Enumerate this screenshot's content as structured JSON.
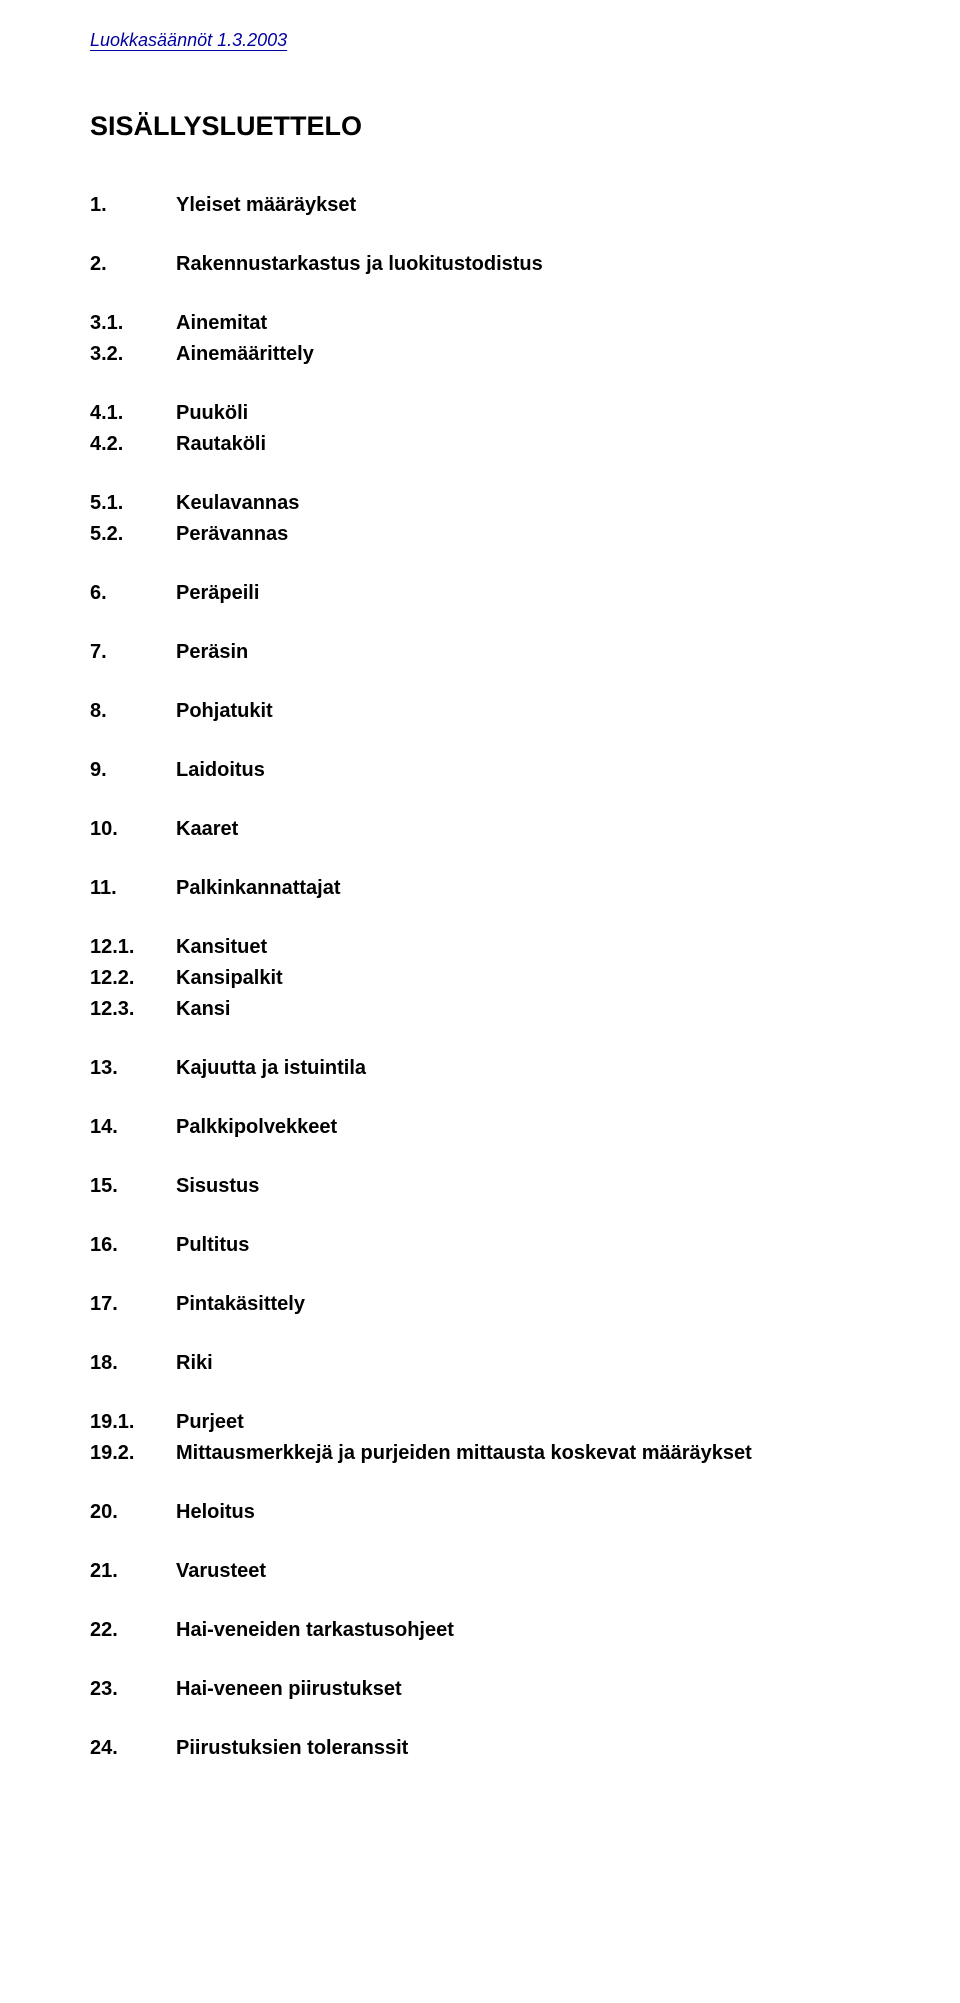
{
  "header": "Luokkasäännöt 1.3.2003",
  "title": "SISÄLLYSLUETTELO",
  "toc": [
    {
      "items": [
        {
          "num": "1.",
          "label": "Yleiset määräykset"
        }
      ]
    },
    {
      "items": [
        {
          "num": "2.",
          "label": "Rakennustarkastus ja luokitustodistus"
        }
      ]
    },
    {
      "items": [
        {
          "num": "3.1.",
          "label": "Ainemitat"
        },
        {
          "num": "3.2.",
          "label": "Ainemäärittely"
        }
      ]
    },
    {
      "items": [
        {
          "num": "4.1.",
          "label": "Puuköli"
        },
        {
          "num": "4.2.",
          "label": "Rautaköli"
        }
      ]
    },
    {
      "items": [
        {
          "num": "5.1.",
          "label": "Keulavannas"
        },
        {
          "num": "5.2.",
          "label": "Perävannas"
        }
      ]
    },
    {
      "items": [
        {
          "num": "6.",
          "label": "Peräpeili"
        }
      ]
    },
    {
      "items": [
        {
          "num": "7.",
          "label": "Peräsin"
        }
      ]
    },
    {
      "items": [
        {
          "num": "8.",
          "label": "Pohjatukit"
        }
      ]
    },
    {
      "items": [
        {
          "num": "9.",
          "label": "Laidoitus"
        }
      ]
    },
    {
      "items": [
        {
          "num": "10.",
          "label": "Kaaret"
        }
      ]
    },
    {
      "items": [
        {
          "num": "11.",
          "label": "Palkinkannattajat"
        }
      ]
    },
    {
      "items": [
        {
          "num": "12.1.",
          "label": "Kansituet"
        },
        {
          "num": "12.2.",
          "label": "Kansipalkit"
        },
        {
          "num": "12.3.",
          "label": "Kansi"
        }
      ]
    },
    {
      "items": [
        {
          "num": "13.",
          "label": " Kajuutta ja istuintila"
        }
      ]
    },
    {
      "items": [
        {
          "num": "14.",
          "label": " Palkkipolvekkeet"
        }
      ]
    },
    {
      "items": [
        {
          "num": "15.",
          "label": " Sisustus"
        }
      ]
    },
    {
      "items": [
        {
          "num": "16.",
          "label": "Pultitus"
        }
      ]
    },
    {
      "items": [
        {
          "num": "17.",
          "label": "Pintakäsittely"
        }
      ]
    },
    {
      "items": [
        {
          "num": "18.",
          "label": "Riki"
        }
      ]
    },
    {
      "items": [
        {
          "num": "19.1.",
          "label": "Purjeet"
        },
        {
          "num": "19.2.",
          "label": "Mittausmerkkejä ja purjeiden mittausta koskevat määräykset"
        }
      ]
    },
    {
      "items": [
        {
          "num": "20.",
          "label": "Heloitus"
        }
      ]
    },
    {
      "items": [
        {
          "num": "21.",
          "label": "Varusteet"
        }
      ]
    },
    {
      "items": [
        {
          "num": "22.",
          "label": "Hai-veneiden tarkastusohjeet"
        }
      ]
    },
    {
      "items": [
        {
          "num": "23.",
          "label": "Hai-veneen piirustukset"
        }
      ]
    },
    {
      "items": [
        {
          "num": "24.",
          "label": "Piirustuksien toleranssit"
        }
      ]
    }
  ]
}
